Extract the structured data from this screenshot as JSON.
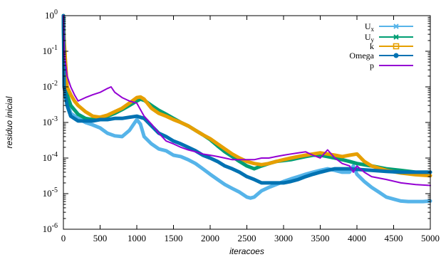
{
  "chart_data": {
    "type": "line",
    "title": "",
    "xlabel": "iteracoes",
    "ylabel": "residuo inicial",
    "yscale": "log",
    "xlim": [
      0,
      5000
    ],
    "ylim": [
      1e-06,
      1
    ],
    "x_ticks": [
      0,
      500,
      1000,
      1500,
      2000,
      2500,
      3000,
      3500,
      4000,
      4500,
      5000
    ],
    "x_tick_labels": [
      "0",
      "500",
      "1000",
      "1500",
      "2000",
      "2500",
      "3000",
      "3500",
      "4000",
      "4500",
      "5000"
    ],
    "y_ticks": [
      1e-06,
      1e-05,
      0.0001,
      0.001,
      0.01,
      0.1,
      1
    ],
    "y_tick_labels": [
      {
        "base": "10",
        "exp": "-6"
      },
      {
        "base": "10",
        "exp": "-5"
      },
      {
        "base": "10",
        "exp": "-4"
      },
      {
        "base": "10",
        "exp": "-3"
      },
      {
        "base": "10",
        "exp": "-2"
      },
      {
        "base": "10",
        "exp": "-1"
      },
      {
        "base": "10",
        "exp": "0"
      }
    ],
    "grid": false,
    "legend_position": "top-right",
    "series": [
      {
        "name": "Ux",
        "label_main": "U",
        "label_sub": "x",
        "color": "#56B4E9",
        "marker": "x",
        "points": [
          [
            0,
            1.0
          ],
          [
            10,
            0.03
          ],
          [
            50,
            0.004
          ],
          [
            100,
            0.0018
          ],
          [
            200,
            0.0013
          ],
          [
            300,
            0.001
          ],
          [
            400,
            0.00085
          ],
          [
            500,
            0.0007
          ],
          [
            600,
            0.0005
          ],
          [
            700,
            0.00042
          ],
          [
            800,
            0.0004
          ],
          [
            900,
            0.0006
          ],
          [
            1000,
            0.0012
          ],
          [
            1050,
            0.0009
          ],
          [
            1100,
            0.0004
          ],
          [
            1200,
            0.00025
          ],
          [
            1300,
            0.00018
          ],
          [
            1400,
            0.00016
          ],
          [
            1500,
            0.00012
          ],
          [
            1600,
            0.00011
          ],
          [
            1700,
            9e-05
          ],
          [
            1800,
            7e-05
          ],
          [
            1900,
            5e-05
          ],
          [
            2000,
            3.5e-05
          ],
          [
            2100,
            2.5e-05
          ],
          [
            2200,
            1.8e-05
          ],
          [
            2300,
            1.4e-05
          ],
          [
            2400,
            1.1e-05
          ],
          [
            2500,
            8e-06
          ],
          [
            2550,
            7.5e-06
          ],
          [
            2600,
            8e-06
          ],
          [
            2700,
            1.2e-05
          ],
          [
            2800,
            1.5e-05
          ],
          [
            2900,
            1.8e-05
          ],
          [
            3000,
            2.2e-05
          ],
          [
            3100,
            2.6e-05
          ],
          [
            3200,
            3e-05
          ],
          [
            3300,
            3.5e-05
          ],
          [
            3400,
            4e-05
          ],
          [
            3500,
            4.5e-05
          ],
          [
            3600,
            5e-05
          ],
          [
            3700,
            4.5e-05
          ],
          [
            3800,
            4e-05
          ],
          [
            3900,
            4e-05
          ],
          [
            3950,
            6e-05
          ],
          [
            4000,
            3.5e-05
          ],
          [
            4100,
            2.2e-05
          ],
          [
            4200,
            1.5e-05
          ],
          [
            4300,
            1.1e-05
          ],
          [
            4400,
            8e-06
          ],
          [
            4500,
            7e-06
          ],
          [
            4600,
            6.2e-06
          ],
          [
            4700,
            6e-06
          ],
          [
            4800,
            6e-06
          ],
          [
            4900,
            6e-06
          ],
          [
            5000,
            6.2e-06
          ]
        ]
      },
      {
        "name": "Uy",
        "label_main": "U",
        "label_sub": "y",
        "color": "#009E73",
        "marker": "x",
        "points": [
          [
            0,
            1.0
          ],
          [
            10,
            0.05
          ],
          [
            50,
            0.006
          ],
          [
            100,
            0.003
          ],
          [
            200,
            0.0017
          ],
          [
            300,
            0.0013
          ],
          [
            400,
            0.0012
          ],
          [
            500,
            0.0013
          ],
          [
            600,
            0.0015
          ],
          [
            700,
            0.0018
          ],
          [
            800,
            0.0023
          ],
          [
            900,
            0.003
          ],
          [
            1000,
            0.004
          ],
          [
            1050,
            0.0045
          ],
          [
            1100,
            0.0042
          ],
          [
            1200,
            0.003
          ],
          [
            1300,
            0.0022
          ],
          [
            1400,
            0.0017
          ],
          [
            1500,
            0.0013
          ],
          [
            1600,
            0.001
          ],
          [
            1700,
            0.0008
          ],
          [
            1800,
            0.0006
          ],
          [
            1900,
            0.00045
          ],
          [
            2000,
            0.00033
          ],
          [
            2100,
            0.00022
          ],
          [
            2200,
            0.00015
          ],
          [
            2300,
            0.00011
          ],
          [
            2400,
            8e-05
          ],
          [
            2500,
            6e-05
          ],
          [
            2600,
            5e-05
          ],
          [
            2700,
            6e-05
          ],
          [
            2800,
            7e-05
          ],
          [
            2900,
            8e-05
          ],
          [
            3000,
            8.5e-05
          ],
          [
            3100,
            9e-05
          ],
          [
            3200,
            0.0001
          ],
          [
            3300,
            0.00011
          ],
          [
            3400,
            0.00012
          ],
          [
            3500,
            0.00012
          ],
          [
            3600,
            0.00011
          ],
          [
            3700,
            0.0001
          ],
          [
            3800,
            9e-05
          ],
          [
            3900,
            8e-05
          ],
          [
            4000,
            7e-05
          ],
          [
            4200,
            6e-05
          ],
          [
            4400,
            5e-05
          ],
          [
            4600,
            4.5e-05
          ],
          [
            4800,
            4e-05
          ],
          [
            5000,
            4e-05
          ]
        ]
      },
      {
        "name": "k",
        "label_main": "k",
        "label_sub": "",
        "color": "#E69F00",
        "marker": "square",
        "points": [
          [
            0,
            1.0
          ],
          [
            10,
            0.2
          ],
          [
            50,
            0.01
          ],
          [
            100,
            0.006
          ],
          [
            150,
            0.004
          ],
          [
            200,
            0.003
          ],
          [
            300,
            0.002
          ],
          [
            400,
            0.0015
          ],
          [
            500,
            0.0014
          ],
          [
            600,
            0.0016
          ],
          [
            700,
            0.002
          ],
          [
            800,
            0.0025
          ],
          [
            900,
            0.0035
          ],
          [
            1000,
            0.005
          ],
          [
            1050,
            0.0052
          ],
          [
            1100,
            0.0045
          ],
          [
            1200,
            0.0025
          ],
          [
            1300,
            0.0018
          ],
          [
            1400,
            0.0015
          ],
          [
            1500,
            0.0012
          ],
          [
            1600,
            0.001
          ],
          [
            1700,
            0.0008
          ],
          [
            1800,
            0.0006
          ],
          [
            1900,
            0.00045
          ],
          [
            2000,
            0.00035
          ],
          [
            2100,
            0.00025
          ],
          [
            2200,
            0.00018
          ],
          [
            2300,
            0.00013
          ],
          [
            2400,
            0.0001
          ],
          [
            2500,
            8e-05
          ],
          [
            2600,
            7e-05
          ],
          [
            2700,
            6.5e-05
          ],
          [
            2800,
            7e-05
          ],
          [
            2900,
            8e-05
          ],
          [
            3000,
            9e-05
          ],
          [
            3100,
            0.0001
          ],
          [
            3200,
            0.00011
          ],
          [
            3300,
            0.00012
          ],
          [
            3400,
            0.00013
          ],
          [
            3500,
            0.00014
          ],
          [
            3600,
            0.00013
          ],
          [
            3700,
            0.00012
          ],
          [
            3800,
            0.00011
          ],
          [
            3900,
            0.00012
          ],
          [
            4000,
            0.00013
          ],
          [
            4100,
            8e-05
          ],
          [
            4200,
            6e-05
          ],
          [
            4400,
            4.5e-05
          ],
          [
            4600,
            3.8e-05
          ],
          [
            4800,
            3.4e-05
          ],
          [
            5000,
            3.2e-05
          ]
        ]
      },
      {
        "name": "Omega",
        "label_main": "Omega",
        "label_sub": "",
        "color": "#0072B2",
        "marker": "circle",
        "points": [
          [
            0,
            1.0
          ],
          [
            10,
            0.01
          ],
          [
            50,
            0.003
          ],
          [
            100,
            0.0015
          ],
          [
            200,
            0.0011
          ],
          [
            300,
            0.0011
          ],
          [
            400,
            0.0011
          ],
          [
            500,
            0.0012
          ],
          [
            600,
            0.0012
          ],
          [
            700,
            0.0013
          ],
          [
            800,
            0.0013
          ],
          [
            900,
            0.0014
          ],
          [
            1000,
            0.0015
          ],
          [
            1100,
            0.0013
          ],
          [
            1200,
            0.0008
          ],
          [
            1300,
            0.0005
          ],
          [
            1400,
            0.0004
          ],
          [
            1500,
            0.0003
          ],
          [
            1600,
            0.00025
          ],
          [
            1700,
            0.0002
          ],
          [
            1800,
            0.00016
          ],
          [
            1900,
            0.00012
          ],
          [
            2000,
            0.0001
          ],
          [
            2100,
            8e-05
          ],
          [
            2200,
            6e-05
          ],
          [
            2300,
            5e-05
          ],
          [
            2400,
            4e-05
          ],
          [
            2500,
            3e-05
          ],
          [
            2600,
            2.5e-05
          ],
          [
            2700,
            2e-05
          ],
          [
            2800,
            2e-05
          ],
          [
            2900,
            2e-05
          ],
          [
            3000,
            2e-05
          ],
          [
            3100,
            2.2e-05
          ],
          [
            3200,
            2.5e-05
          ],
          [
            3300,
            3e-05
          ],
          [
            3400,
            3.5e-05
          ],
          [
            3500,
            4e-05
          ],
          [
            3600,
            4.5e-05
          ],
          [
            3700,
            5e-05
          ],
          [
            3800,
            5e-05
          ],
          [
            3900,
            5e-05
          ],
          [
            4000,
            4.8e-05
          ],
          [
            4200,
            4.5e-05
          ],
          [
            4400,
            4.2e-05
          ],
          [
            4600,
            4e-05
          ],
          [
            4800,
            4e-05
          ],
          [
            5000,
            4e-05
          ]
        ]
      },
      {
        "name": "p",
        "label_main": "p",
        "label_sub": "",
        "color": "#9400D3",
        "marker": "none",
        "points": [
          [
            0,
            1.0
          ],
          [
            10,
            0.1
          ],
          [
            50,
            0.02
          ],
          [
            100,
            0.01
          ],
          [
            150,
            0.006
          ],
          [
            200,
            0.004
          ],
          [
            300,
            0.005
          ],
          [
            400,
            0.006
          ],
          [
            500,
            0.007
          ],
          [
            600,
            0.009
          ],
          [
            650,
            0.01
          ],
          [
            700,
            0.007
          ],
          [
            800,
            0.005
          ],
          [
            900,
            0.004
          ],
          [
            1000,
            0.0035
          ],
          [
            1100,
            0.0015
          ],
          [
            1200,
            0.0009
          ],
          [
            1300,
            0.0005
          ],
          [
            1400,
            0.0003
          ],
          [
            1500,
            0.00025
          ],
          [
            1600,
            0.0002
          ],
          [
            1700,
            0.00017
          ],
          [
            1800,
            0.00015
          ],
          [
            1900,
            0.00013
          ],
          [
            2000,
            0.00012
          ],
          [
            2100,
            0.00011
          ],
          [
            2200,
            0.0001
          ],
          [
            2300,
            9e-05
          ],
          [
            2400,
            9e-05
          ],
          [
            2500,
            9e-05
          ],
          [
            2600,
            9e-05
          ],
          [
            2700,
            0.0001
          ],
          [
            2800,
            0.0001
          ],
          [
            2900,
            0.00011
          ],
          [
            3000,
            0.00012
          ],
          [
            3100,
            0.00013
          ],
          [
            3200,
            0.00014
          ],
          [
            3300,
            0.00015
          ],
          [
            3400,
            0.00012
          ],
          [
            3500,
            0.0001
          ],
          [
            3600,
            0.00017
          ],
          [
            3700,
            0.0001
          ],
          [
            3800,
            7e-05
          ],
          [
            3900,
            6e-05
          ],
          [
            3950,
            4e-05
          ],
          [
            4000,
            6e-05
          ],
          [
            4100,
            4e-05
          ],
          [
            4200,
            3e-05
          ],
          [
            4400,
            2.5e-05
          ],
          [
            4600,
            2e-05
          ],
          [
            4800,
            1.8e-05
          ],
          [
            5000,
            1.7e-05
          ]
        ]
      }
    ]
  }
}
